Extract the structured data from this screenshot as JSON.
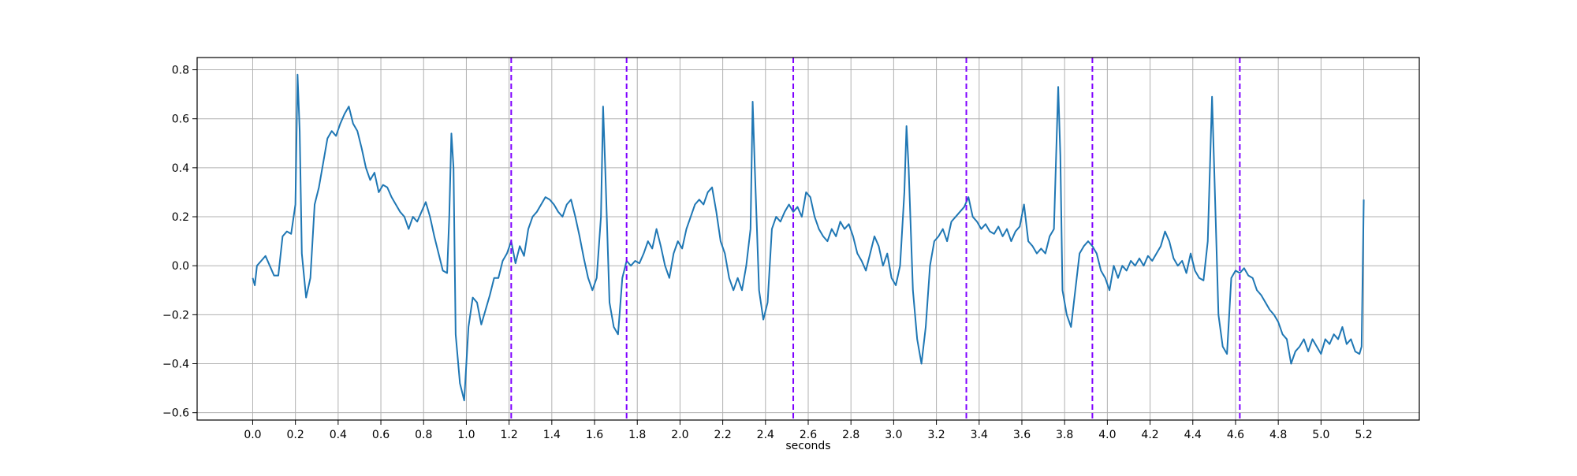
{
  "chart_data": {
    "type": "line",
    "xlabel": "seconds",
    "color": "#1f77b4",
    "grid": true,
    "xlim": [
      -0.26,
      5.46
    ],
    "ylim": [
      -0.63,
      0.85
    ],
    "xticks": [
      {
        "value": 0,
        "label": "0.0"
      },
      0.2,
      0.4,
      0.6,
      0.8,
      {
        "value": 1,
        "label": "1.0"
      },
      1.2,
      1.4,
      1.6,
      1.8,
      {
        "value": 2,
        "label": "2.0"
      },
      2.2,
      2.4,
      2.6,
      2.8,
      {
        "value": 3,
        "label": "3.0"
      },
      3.2,
      3.4,
      3.6,
      3.8,
      {
        "value": 4,
        "label": "4.0"
      },
      4.2,
      4.4,
      4.6,
      4.8,
      {
        "value": 5,
        "label": "5.0"
      },
      5.2
    ],
    "yticks": [
      {
        "value": -0.6,
        "label": "−0.6"
      },
      {
        "value": -0.4,
        "label": "−0.4"
      },
      {
        "value": -0.2,
        "label": "−0.2"
      },
      {
        "value": 0,
        "label": "0.0"
      },
      0.2,
      0.4,
      0.6,
      0.8
    ],
    "vlines": {
      "color": "#7f00ff",
      "style": "dashed",
      "x": [
        1.21,
        1.75,
        2.53,
        3.34,
        3.93,
        4.62
      ]
    },
    "x": [
      0,
      0.01,
      0.02,
      0.04,
      0.06,
      0.08,
      0.1,
      0.12,
      0.14,
      0.16,
      0.18,
      0.2,
      0.21,
      0.22,
      0.23,
      0.25,
      0.27,
      0.29,
      0.31,
      0.33,
      0.35,
      0.37,
      0.39,
      0.41,
      0.43,
      0.45,
      0.47,
      0.49,
      0.51,
      0.53,
      0.55,
      0.57,
      0.59,
      0.61,
      0.63,
      0.65,
      0.67,
      0.69,
      0.71,
      0.73,
      0.75,
      0.77,
      0.79,
      0.81,
      0.83,
      0.85,
      0.87,
      0.89,
      0.91,
      0.92,
      0.93,
      0.94,
      0.95,
      0.97,
      0.99,
      1.01,
      1.03,
      1.05,
      1.07,
      1.09,
      1.11,
      1.13,
      1.15,
      1.17,
      1.19,
      1.21,
      1.23,
      1.25,
      1.27,
      1.29,
      1.31,
      1.33,
      1.35,
      1.37,
      1.39,
      1.41,
      1.43,
      1.45,
      1.47,
      1.49,
      1.51,
      1.53,
      1.55,
      1.57,
      1.59,
      1.61,
      1.63,
      1.64,
      1.65,
      1.67,
      1.69,
      1.71,
      1.73,
      1.75,
      1.77,
      1.79,
      1.81,
      1.83,
      1.85,
      1.87,
      1.89,
      1.91,
      1.93,
      1.95,
      1.97,
      1.99,
      2.01,
      2.03,
      2.05,
      2.07,
      2.09,
      2.11,
      2.13,
      2.15,
      2.17,
      2.19,
      2.21,
      2.23,
      2.25,
      2.27,
      2.29,
      2.31,
      2.33,
      2.34,
      2.35,
      2.37,
      2.39,
      2.41,
      2.43,
      2.45,
      2.47,
      2.49,
      2.51,
      2.53,
      2.55,
      2.57,
      2.59,
      2.61,
      2.63,
      2.65,
      2.67,
      2.69,
      2.71,
      2.73,
      2.75,
      2.77,
      2.79,
      2.81,
      2.83,
      2.85,
      2.87,
      2.89,
      2.91,
      2.93,
      2.95,
      2.97,
      2.99,
      3.01,
      3.03,
      3.05,
      3.06,
      3.07,
      3.09,
      3.11,
      3.13,
      3.15,
      3.17,
      3.19,
      3.21,
      3.23,
      3.25,
      3.27,
      3.29,
      3.31,
      3.33,
      3.35,
      3.37,
      3.39,
      3.41,
      3.43,
      3.45,
      3.47,
      3.49,
      3.51,
      3.53,
      3.55,
      3.57,
      3.59,
      3.61,
      3.63,
      3.65,
      3.67,
      3.69,
      3.71,
      3.73,
      3.75,
      3.77,
      3.78,
      3.79,
      3.81,
      3.83,
      3.85,
      3.87,
      3.89,
      3.91,
      3.93,
      3.95,
      3.97,
      3.99,
      4.01,
      4.03,
      4.05,
      4.07,
      4.09,
      4.11,
      4.13,
      4.15,
      4.17,
      4.19,
      4.21,
      4.23,
      4.25,
      4.27,
      4.29,
      4.31,
      4.33,
      4.35,
      4.37,
      4.39,
      4.41,
      4.43,
      4.45,
      4.47,
      4.49,
      4.5,
      4.52,
      4.54,
      4.56,
      4.58,
      4.6,
      4.62,
      4.64,
      4.66,
      4.68,
      4.7,
      4.72,
      4.74,
      4.76,
      4.78,
      4.8,
      4.82,
      4.84,
      4.86,
      4.88,
      4.9,
      4.92,
      4.94,
      4.96,
      4.98,
      5,
      5.02,
      5.04,
      5.06,
      5.08,
      5.1,
      5.12,
      5.14,
      5.16,
      5.18,
      5.19,
      5.2
    ],
    "values": [
      -0.05,
      -0.08,
      0,
      0.02,
      0.04,
      0,
      -0.04,
      -0.04,
      0.12,
      0.14,
      0.13,
      0.25,
      0.78,
      0.55,
      0.05,
      -0.13,
      -0.05,
      0.25,
      0.32,
      0.42,
      0.52,
      0.55,
      0.53,
      0.58,
      0.62,
      0.65,
      0.58,
      0.55,
      0.48,
      0.4,
      0.35,
      0.38,
      0.3,
      0.33,
      0.32,
      0.28,
      0.25,
      0.22,
      0.2,
      0.15,
      0.2,
      0.18,
      0.22,
      0.26,
      0.2,
      0.12,
      0.05,
      -0.02,
      -0.03,
      0.2,
      0.54,
      0.4,
      -0.28,
      -0.48,
      -0.55,
      -0.25,
      -0.13,
      -0.15,
      -0.24,
      -0.18,
      -0.12,
      -0.05,
      -0.05,
      0.02,
      0.05,
      0.1,
      0.01,
      0.08,
      0.04,
      0.15,
      0.2,
      0.22,
      0.25,
      0.28,
      0.27,
      0.25,
      0.22,
      0.2,
      0.25,
      0.27,
      0.2,
      0.12,
      0.03,
      -0.05,
      -0.1,
      -0.05,
      0.2,
      0.65,
      0.4,
      -0.15,
      -0.25,
      -0.28,
      -0.05,
      0.02,
      0,
      0.02,
      0.01,
      0.05,
      0.1,
      0.07,
      0.15,
      0.08,
      0,
      -0.05,
      0.05,
      0.1,
      0.07,
      0.15,
      0.2,
      0.25,
      0.27,
      0.25,
      0.3,
      0.32,
      0.22,
      0.1,
      0.05,
      -0.05,
      -0.1,
      -0.05,
      -0.1,
      0,
      0.15,
      0.67,
      0.4,
      -0.1,
      -0.22,
      -0.15,
      0.15,
      0.2,
      0.18,
      0.22,
      0.25,
      0.22,
      0.24,
      0.2,
      0.3,
      0.28,
      0.2,
      0.15,
      0.12,
      0.1,
      0.15,
      0.12,
      0.18,
      0.15,
      0.17,
      0.12,
      0.05,
      0.02,
      -0.02,
      0.05,
      0.12,
      0.08,
      0,
      0.05,
      -0.05,
      -0.08,
      0,
      0.3,
      0.57,
      0.4,
      -0.1,
      -0.3,
      -0.4,
      -0.25,
      0,
      0.1,
      0.12,
      0.15,
      0.1,
      0.18,
      0.2,
      0.22,
      0.24,
      0.28,
      0.2,
      0.18,
      0.15,
      0.17,
      0.14,
      0.13,
      0.16,
      0.12,
      0.15,
      0.1,
      0.14,
      0.16,
      0.25,
      0.1,
      0.08,
      0.05,
      0.07,
      0.05,
      0.12,
      0.15,
      0.73,
      0.45,
      -0.1,
      -0.2,
      -0.25,
      -0.1,
      0.05,
      0.08,
      0.1,
      0.08,
      0.05,
      -0.02,
      -0.05,
      -0.1,
      0,
      -0.05,
      0,
      -0.02,
      0.02,
      0,
      0.03,
      0,
      0.04,
      0.02,
      0.05,
      0.08,
      0.14,
      0.1,
      0.03,
      0,
      0.02,
      -0.03,
      0.05,
      -0.02,
      -0.05,
      -0.06,
      0.1,
      0.69,
      0.4,
      -0.2,
      -0.33,
      -0.36,
      -0.05,
      -0.02,
      -0.03,
      -0.01,
      -0.04,
      -0.05,
      -0.1,
      -0.12,
      -0.15,
      -0.18,
      -0.2,
      -0.23,
      -0.28,
      -0.3,
      -0.4,
      -0.35,
      -0.33,
      -0.3,
      -0.35,
      -0.3,
      -0.33,
      -0.36,
      -0.3,
      -0.32,
      -0.28,
      -0.3,
      -0.25,
      -0.32,
      -0.3,
      -0.35,
      -0.36,
      -0.33,
      0.27
    ]
  }
}
